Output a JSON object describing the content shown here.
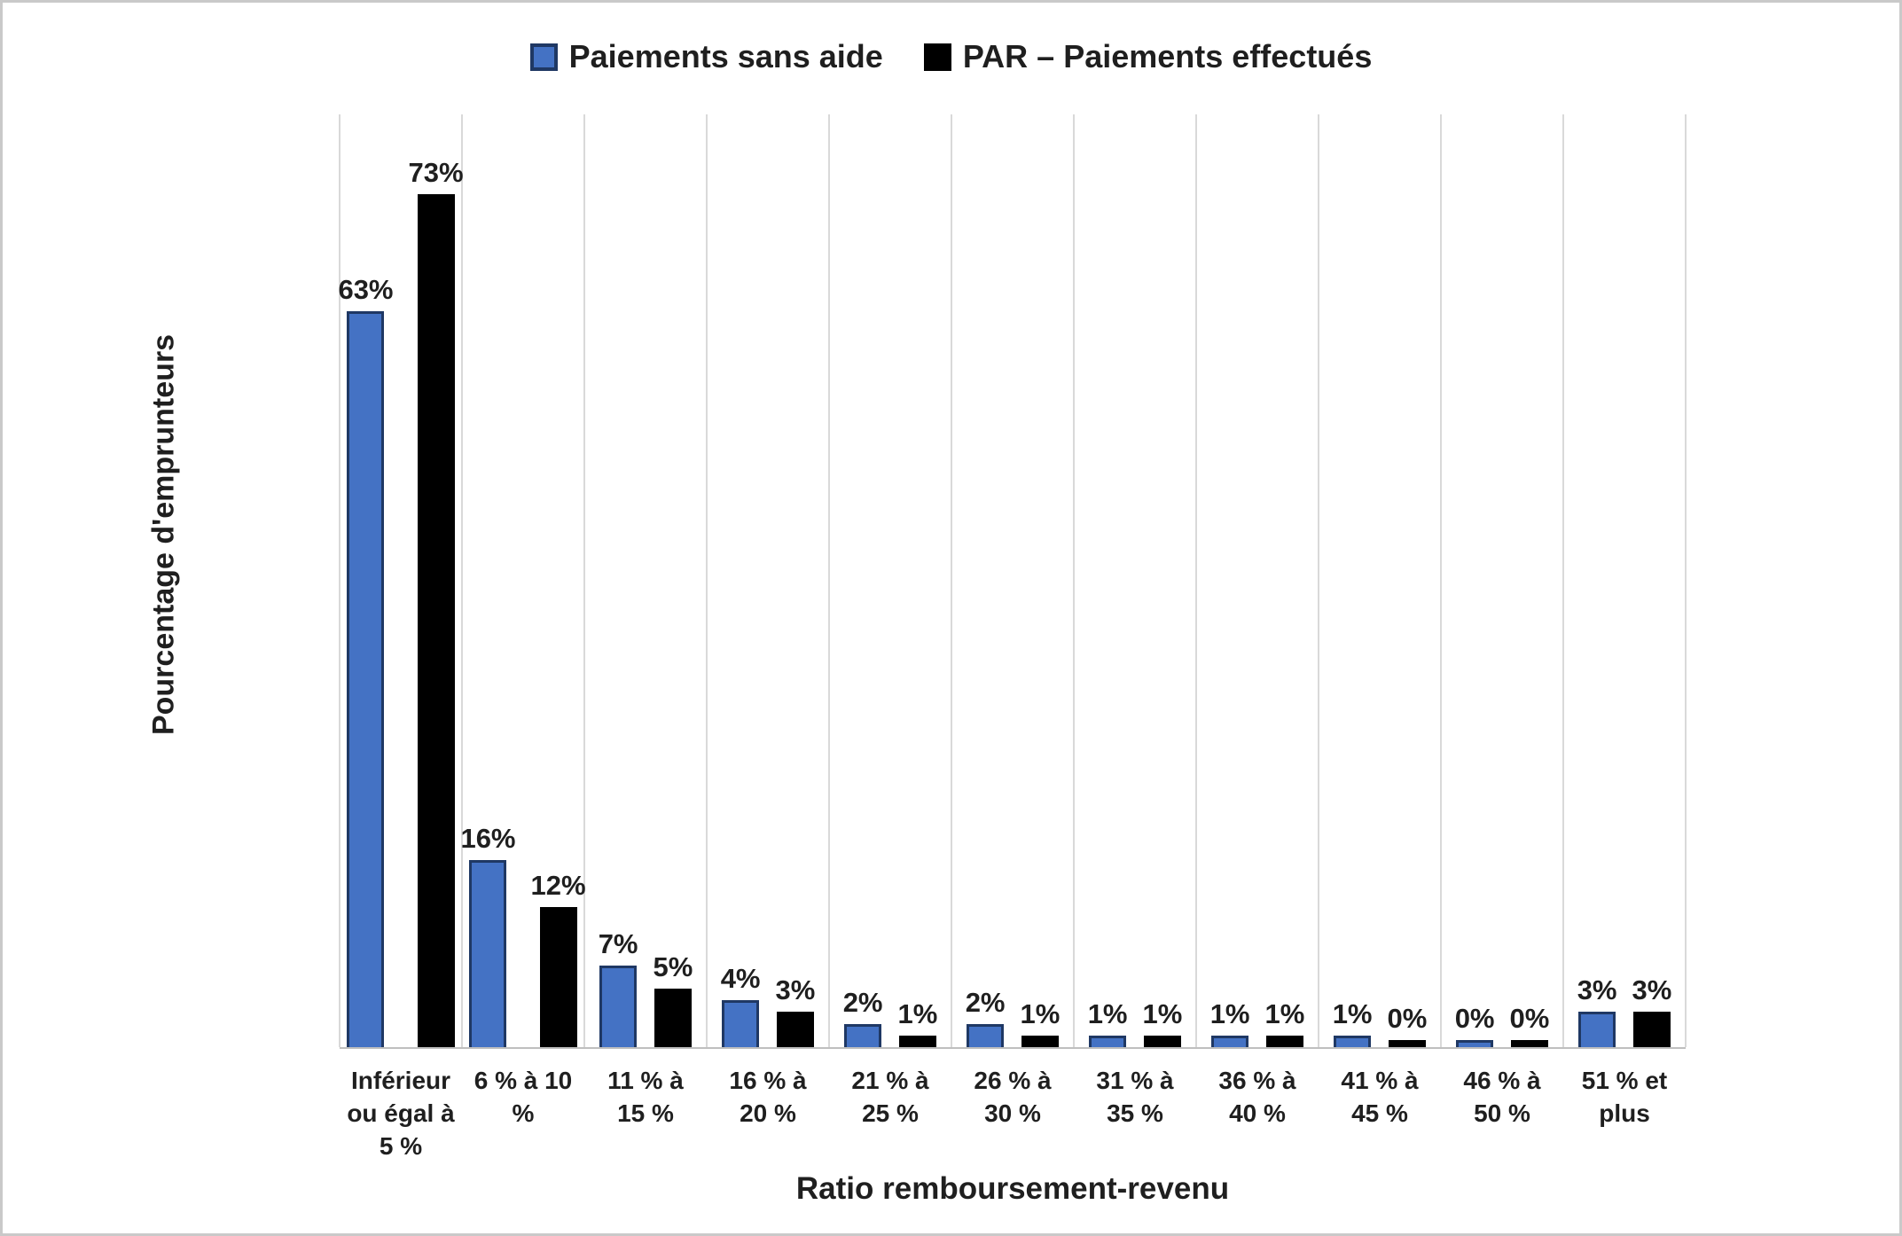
{
  "chart_data": {
    "type": "bar",
    "title": "",
    "xlabel": "Ratio remboursement-revenu",
    "ylabel": "Pourcentage d'emprunteurs",
    "ylim": [
      0,
      80
    ],
    "grid": "vertical-category-separators",
    "legend_position": "top-center",
    "colors": {
      "series_blue_fill": "#4472C4",
      "series_blue_border": "#1F3864",
      "series_black_fill": "#000000",
      "gridline": "#D9D9D9",
      "axis_line": "#BFBFBF"
    },
    "categories": [
      "Inférieur\nou égal à\n5 %",
      "6 % à 10\n%",
      "11 % à\n15 %",
      "16 % à\n20 %",
      "21 % à\n25 %",
      "26 % à\n30 %",
      "31 % à\n35 %",
      "36 % à\n40 %",
      "41 % à\n45 %",
      "46 % à\n50 %",
      "51 % et\nplus"
    ],
    "series": [
      {
        "name": "Paiements sans aide",
        "values": [
          63,
          16,
          7,
          4,
          2,
          2,
          1,
          1,
          1,
          0,
          3
        ],
        "labels": [
          "63%",
          "16%",
          "7%",
          "4%",
          "2%",
          "2%",
          "1%",
          "1%",
          "1%",
          "0%",
          "3%"
        ]
      },
      {
        "name": "PAR – Paiements effectués",
        "values": [
          73,
          12,
          5,
          3,
          1,
          1,
          1,
          1,
          0,
          0,
          3
        ],
        "labels": [
          "73%",
          "12%",
          "5%",
          "3%",
          "1%",
          "1%",
          "1%",
          "1%",
          "0%",
          "0%",
          "3%"
        ]
      }
    ]
  }
}
